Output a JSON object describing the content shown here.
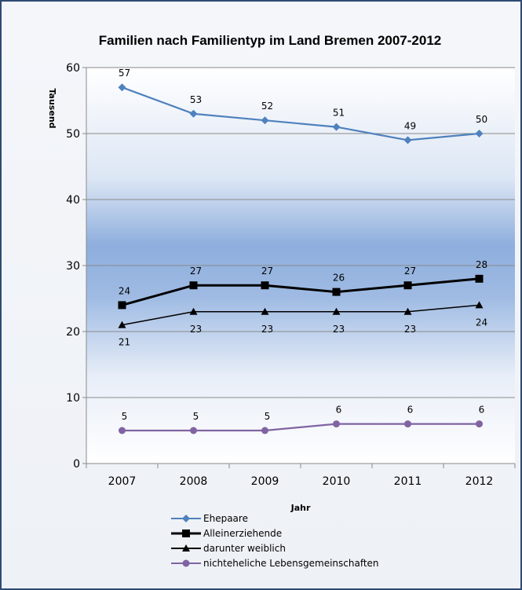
{
  "chart_data": {
    "type": "line",
    "title": "Familien nach Familientyp im Land Bremen 2007-2012",
    "xlabel": "Jahr",
    "ylabel": "Tausend",
    "categories": [
      "2007",
      "2008",
      "2009",
      "2010",
      "2011",
      "2012"
    ],
    "ylim": [
      0,
      60
    ],
    "yticks": [
      0,
      10,
      20,
      30,
      40,
      50,
      60
    ],
    "grid": true,
    "legend_position": "bottom",
    "series": [
      {
        "name": "Ehepaare",
        "values": [
          57,
          53,
          52,
          51,
          49,
          50
        ],
        "color": "#4f81bd",
        "marker": "diamond",
        "label_pos": "above"
      },
      {
        "name": "Alleinerziehende",
        "values": [
          24,
          27,
          27,
          26,
          27,
          28
        ],
        "color": "#000000",
        "marker": "square",
        "label_pos": "above"
      },
      {
        "name": "darunter weiblich",
        "values": [
          21,
          23,
          23,
          23,
          23,
          24
        ],
        "color": "#000000",
        "marker": "triangle",
        "label_pos": "below"
      },
      {
        "name": "nichteheliche Lebensgemeinschaften",
        "values": [
          5,
          5,
          5,
          6,
          6,
          6
        ],
        "color": "#8064a2",
        "marker": "circle",
        "label_pos": "above"
      }
    ]
  }
}
